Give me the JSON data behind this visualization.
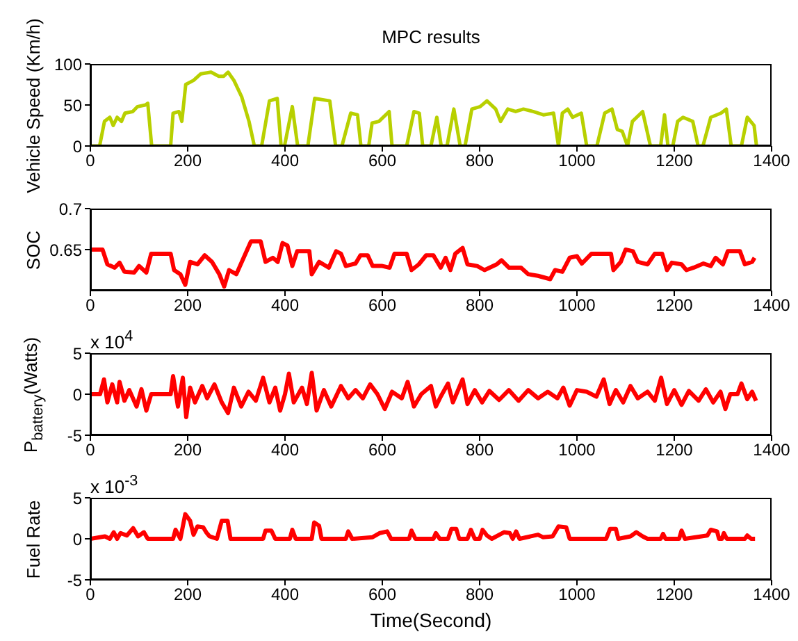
{
  "chart_data": [
    {
      "type": "line",
      "title": "MPC results",
      "ylabel": "Vehicle Speed (Km/h)",
      "xlim": [
        0,
        1400
      ],
      "xticks": [
        0,
        200,
        400,
        600,
        800,
        1000,
        1200,
        1400
      ],
      "ylim": [
        0,
        100
      ],
      "yticks": [
        0,
        50,
        100
      ],
      "x": [
        0,
        19,
        29,
        40,
        47,
        55,
        64,
        71,
        87,
        97,
        113,
        118,
        126,
        165,
        170,
        182,
        188,
        196,
        212,
        227,
        248,
        264,
        274,
        283,
        295,
        311,
        326,
        337,
        352,
        368,
        384,
        392,
        399,
        415,
        426,
        447,
        461,
        492,
        504,
        517,
        535,
        549,
        556,
        572,
        579,
        593,
        614,
        620,
        650,
        665,
        676,
        683,
        700,
        712,
        721,
        733,
        747,
        760,
        770,
        784,
        801,
        815,
        833,
        843,
        858,
        874,
        890,
        910,
        931,
        952,
        962,
        970,
        981,
        991,
        1009,
        1020,
        1041,
        1057,
        1072,
        1083,
        1093,
        1104,
        1114,
        1135,
        1151,
        1172,
        1180,
        1187,
        1197,
        1207,
        1218,
        1238,
        1249,
        1259,
        1275,
        1296,
        1307,
        1317,
        1338,
        1350,
        1364,
        1369
      ],
      "series": [
        {
          "color": "#b8d000",
          "values": [
            0,
            0,
            30,
            35,
            25,
            35,
            30,
            40,
            42,
            48,
            50,
            52,
            0,
            0,
            40,
            42,
            30,
            75,
            80,
            88,
            90,
            85,
            85,
            90,
            80,
            60,
            30,
            0,
            0,
            55,
            58,
            0,
            0,
            48,
            0,
            0,
            58,
            55,
            0,
            0,
            40,
            38,
            0,
            0,
            28,
            30,
            42,
            0,
            0,
            42,
            40,
            0,
            0,
            35,
            0,
            0,
            45,
            0,
            0,
            45,
            48,
            55,
            45,
            30,
            45,
            42,
            45,
            42,
            38,
            40,
            0,
            40,
            45,
            35,
            40,
            0,
            0,
            40,
            45,
            20,
            18,
            0,
            30,
            42,
            0,
            0,
            38,
            0,
            0,
            30,
            35,
            30,
            0,
            0,
            35,
            40,
            45,
            0,
            0,
            35,
            25,
            0
          ]
        }
      ]
    },
    {
      "type": "line",
      "ylabel": "SOC",
      "xlim": [
        0,
        1400
      ],
      "xticks": [
        0,
        200,
        400,
        600,
        800,
        1000,
        1200,
        1400
      ],
      "ylim": [
        0.6,
        0.7
      ],
      "yticks": [
        0.65,
        0.7
      ],
      "x": [
        0,
        25,
        35,
        50,
        60,
        70,
        90,
        100,
        115,
        125,
        165,
        172,
        185,
        195,
        205,
        220,
        235,
        250,
        265,
        275,
        285,
        300,
        315,
        330,
        350,
        360,
        375,
        385,
        395,
        405,
        415,
        425,
        450,
        455,
        470,
        490,
        505,
        515,
        525,
        545,
        555,
        570,
        580,
        600,
        615,
        625,
        650,
        660,
        675,
        690,
        705,
        720,
        730,
        740,
        750,
        765,
        775,
        795,
        810,
        835,
        845,
        860,
        885,
        900,
        920,
        945,
        955,
        970,
        985,
        1000,
        1010,
        1030,
        1070,
        1075,
        1090,
        1100,
        1115,
        1125,
        1145,
        1160,
        1175,
        1185,
        1195,
        1215,
        1225,
        1240,
        1260,
        1275,
        1285,
        1300,
        1310,
        1335,
        1345,
        1360,
        1365
      ],
      "series": [
        {
          "color": "#ff0000",
          "values": [
            0.65,
            0.65,
            0.632,
            0.628,
            0.634,
            0.623,
            0.622,
            0.63,
            0.622,
            0.645,
            0.645,
            0.625,
            0.62,
            0.607,
            0.635,
            0.632,
            0.643,
            0.635,
            0.62,
            0.605,
            0.625,
            0.62,
            0.64,
            0.66,
            0.66,
            0.635,
            0.64,
            0.635,
            0.658,
            0.655,
            0.63,
            0.648,
            0.648,
            0.62,
            0.635,
            0.628,
            0.648,
            0.645,
            0.63,
            0.633,
            0.643,
            0.643,
            0.63,
            0.63,
            0.628,
            0.645,
            0.645,
            0.625,
            0.632,
            0.643,
            0.643,
            0.628,
            0.64,
            0.625,
            0.645,
            0.652,
            0.632,
            0.63,
            0.625,
            0.632,
            0.637,
            0.628,
            0.628,
            0.62,
            0.618,
            0.614,
            0.625,
            0.623,
            0.64,
            0.642,
            0.633,
            0.645,
            0.645,
            0.625,
            0.635,
            0.65,
            0.648,
            0.635,
            0.632,
            0.645,
            0.645,
            0.625,
            0.634,
            0.632,
            0.625,
            0.628,
            0.633,
            0.63,
            0.64,
            0.632,
            0.648,
            0.648,
            0.632,
            0.635,
            0.64
          ]
        }
      ]
    },
    {
      "type": "line",
      "ylabel": "P$_{battery}$(Watts)",
      "annotations": [
        "x 10$^{4}$"
      ],
      "xlim": [
        0,
        1400
      ],
      "xticks": [
        0,
        200,
        400,
        600,
        800,
        1000,
        1200,
        1400
      ],
      "ylim": [
        -5,
        5
      ],
      "yticks": [
        -5,
        0,
        5
      ],
      "x": [
        0,
        20,
        28,
        35,
        45,
        55,
        60,
        70,
        80,
        95,
        105,
        115,
        125,
        165,
        170,
        180,
        190,
        197,
        205,
        215,
        230,
        240,
        255,
        270,
        283,
        295,
        310,
        325,
        340,
        355,
        368,
        380,
        390,
        400,
        408,
        418,
        435,
        445,
        455,
        465,
        480,
        495,
        515,
        530,
        545,
        560,
        575,
        590,
        605,
        620,
        640,
        652,
        665,
        680,
        700,
        710,
        720,
        735,
        745,
        765,
        775,
        790,
        805,
        820,
        840,
        860,
        880,
        900,
        920,
        940,
        960,
        972,
        985,
        1000,
        1020,
        1040,
        1055,
        1067,
        1080,
        1095,
        1110,
        1125,
        1145,
        1160,
        1173,
        1185,
        1200,
        1215,
        1230,
        1250,
        1265,
        1280,
        1295,
        1305,
        1315,
        1330,
        1338,
        1350,
        1360,
        1368
      ],
      "series": [
        {
          "color": "#ff0000",
          "values": [
            0,
            0,
            1.8,
            -1,
            1.2,
            -1,
            1.5,
            -0.8,
            0.5,
            -1.5,
            0.6,
            -2,
            0,
            0,
            2.2,
            -1.5,
            2,
            -2.8,
            0.8,
            -1,
            1,
            -0.5,
            1.2,
            -1,
            -2.3,
            0.8,
            -1.5,
            0.3,
            -0.8,
            2,
            -1,
            0.8,
            -2,
            0,
            2.5,
            -1,
            0.8,
            -1.2,
            2.6,
            -2,
            0.5,
            -1.5,
            1,
            -0.5,
            0.5,
            -0.5,
            1.2,
            0,
            -1.8,
            0.3,
            -0.5,
            1.5,
            -1.5,
            0,
            1,
            -1.5,
            -0.3,
            1.3,
            -1,
            1.8,
            -1.2,
            0.5,
            -1,
            0.4,
            -0.7,
            0.5,
            -0.8,
            0.5,
            -0.5,
            0.3,
            -0.5,
            0.8,
            -1.4,
            0.5,
            0.3,
            -0.3,
            1.8,
            -1.2,
            0.5,
            -1,
            1,
            -0.5,
            0.3,
            -0.8,
            2,
            -1.2,
            0.5,
            -1.3,
            0.4,
            -0.8,
            0.6,
            -1,
            0.3,
            -1.8,
            0,
            0,
            1.3,
            -0.6,
            0.3,
            -0.8
          ]
        }
      ]
    },
    {
      "type": "line",
      "ylabel": "Fuel Rate",
      "xlabel": "Time(Second)",
      "annotations": [
        "x 10$^{-3}$"
      ],
      "xlim": [
        0,
        1400
      ],
      "xticks": [
        0,
        200,
        400,
        600,
        800,
        1000,
        1200,
        1400
      ],
      "ylim": [
        -5,
        5
      ],
      "yticks": [
        -5,
        0,
        5
      ],
      "x": [
        0,
        30,
        40,
        48,
        55,
        62,
        75,
        88,
        98,
        110,
        118,
        170,
        175,
        185,
        195,
        205,
        212,
        220,
        232,
        238,
        245,
        260,
        270,
        282,
        288,
        355,
        360,
        372,
        380,
        410,
        415,
        422,
        455,
        460,
        470,
        475,
        525,
        530,
        538,
        580,
        595,
        610,
        618,
        655,
        660,
        668,
        705,
        710,
        718,
        735,
        742,
        752,
        758,
        775,
        782,
        790,
        800,
        806,
        815,
        825,
        850,
        862,
        868,
        875,
        882,
        920,
        930,
        950,
        962,
        978,
        985,
        1060,
        1068,
        1080,
        1085,
        1110,
        1122,
        1135,
        1145,
        1172,
        1177,
        1182,
        1210,
        1215,
        1222,
        1268,
        1275,
        1288,
        1292,
        1298,
        1302,
        1308,
        1345,
        1350,
        1358,
        1366
      ],
      "series": [
        {
          "color": "#ff0000",
          "values": [
            0,
            0.3,
            0,
            0.8,
            0,
            0.7,
            0.4,
            1.3,
            0.3,
            0.8,
            0,
            0,
            1.1,
            0,
            3,
            2.2,
            0.5,
            1.5,
            1.4,
            0.8,
            0.3,
            0,
            2.2,
            2.2,
            0,
            0,
            1,
            1,
            0,
            0,
            1.1,
            0,
            0,
            2,
            1.6,
            0,
            0,
            0.9,
            0,
            0.2,
            0.7,
            0.9,
            0,
            0,
            1,
            0,
            0,
            0.7,
            0,
            0,
            1.2,
            1.2,
            0,
            0,
            1.1,
            0,
            0,
            1.1,
            0.4,
            0,
            0.8,
            0.7,
            0,
            0.9,
            0,
            0.5,
            0.2,
            0.3,
            1.5,
            1.4,
            0,
            0,
            1.2,
            1.2,
            0,
            0.3,
            0.8,
            0.3,
            0,
            0,
            0.6,
            0,
            0,
            1,
            0,
            0.4,
            1.1,
            0.9,
            0,
            0,
            0.7,
            0,
            0,
            0.4,
            0,
            0
          ]
        }
      ]
    }
  ]
}
